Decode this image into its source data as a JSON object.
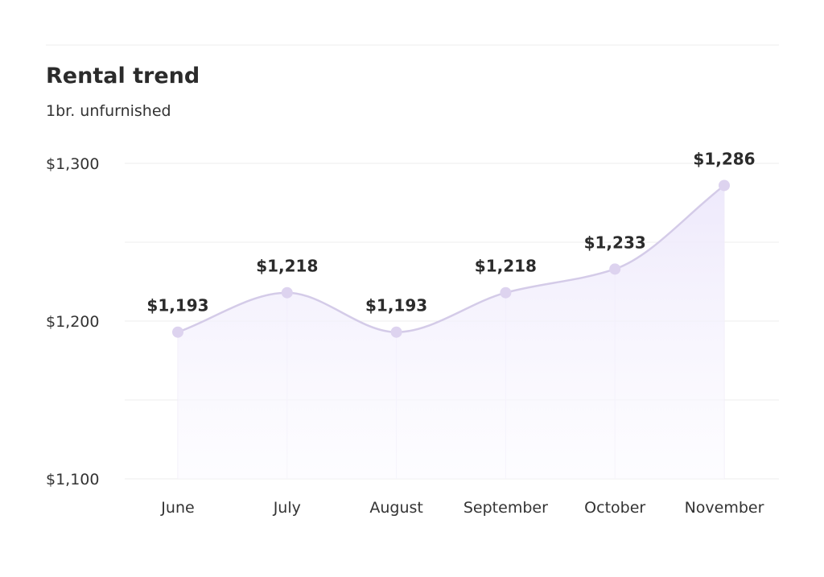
{
  "chart_data": {
    "type": "line",
    "title": "Rental trend",
    "subtitle": "1br. unfurnished",
    "xlabel": "",
    "ylabel": "",
    "categories": [
      "June",
      "July",
      "August",
      "September",
      "October",
      "November"
    ],
    "series": [
      {
        "values": [
          1193,
          1218,
          1193,
          1218,
          1233,
          1286
        ],
        "labels": [
          "$1,193",
          "$1,218",
          "$1,193",
          "$1,218",
          "$1,233",
          "$1,286"
        ]
      }
    ],
    "ylim": [
      1100,
      1300
    ],
    "yticks": [
      1100,
      1200,
      1300
    ],
    "ytick_labels": [
      "$1,100",
      "$1,200",
      "$1,300"
    ],
    "grid": true,
    "area_fill": true,
    "smooth": true,
    "legend": "none"
  },
  "colors": {
    "line": "#d4cbe8",
    "marker": "#ddd3ef",
    "area_top": "#ede8fb",
    "area_bottom": "#fbfaff",
    "grid": "#eeeeee",
    "text": "#333333"
  }
}
